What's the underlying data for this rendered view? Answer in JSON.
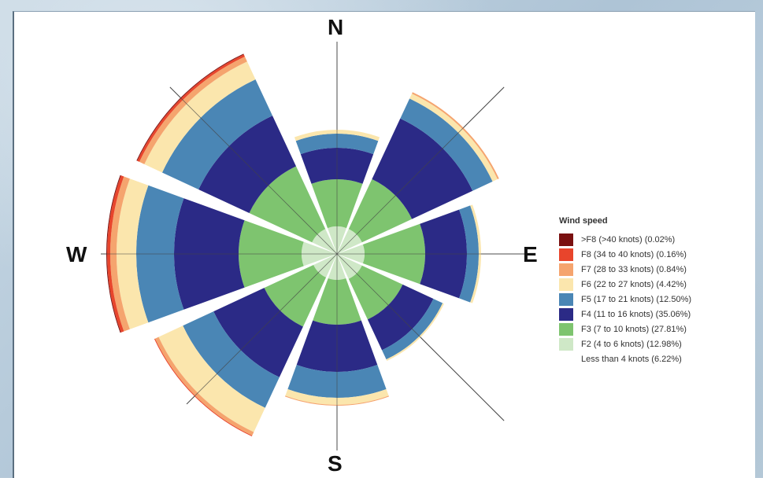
{
  "chart_data": {
    "type": "wind-rose",
    "directions": [
      "N",
      "NE",
      "E",
      "SE",
      "S",
      "SW",
      "W",
      "NW"
    ],
    "compass_labels": {
      "north": "N",
      "east": "E",
      "south": "S",
      "west": "W"
    },
    "legend_title": "Wind speed",
    "legend_placement": "right",
    "bins": [
      {
        "label": ">F8 (>40 knots) (0.02%)",
        "color": "#7a1010"
      },
      {
        "label": "F8 (34 to 40 knots) (0.16%)",
        "color": "#e8452c"
      },
      {
        "label": "F7 (28 to 33 knots) (0.84%)",
        "color": "#f5a46e"
      },
      {
        "label": "F6 (22 to 27 knots) (4.42%)",
        "color": "#fbe6ad"
      },
      {
        "label": "F5 (17 to 21 knots) (12.50%)",
        "color": "#4a86b5"
      },
      {
        "label": "F4 (11 to 16 knots) (35.06%)",
        "color": "#2b2a86"
      },
      {
        "label": "F3 (7 to 10 knots) (27.81%)",
        "color": "#7ec46f"
      },
      {
        "label": "F2 (4 to 6 knots) (12.98%)",
        "color": "#cfe8c7"
      },
      {
        "label": "Less than 4 knots (6.22%)",
        "color": "#ffffff"
      }
    ],
    "sectors": [
      {
        "direction": "N",
        "cum": [
          3.5,
          9.5,
          13.5,
          15.3,
          15.8,
          15.8,
          15.8,
          15.8
        ]
      },
      {
        "direction": "NE",
        "cum": [
          3.5,
          10.5,
          19.0,
          21.8,
          22.5,
          22.7,
          22.7,
          22.7
        ]
      },
      {
        "direction": "E",
        "cum": [
          3.5,
          11.2,
          16.5,
          18.0,
          18.3,
          18.3,
          18.3,
          18.3
        ]
      },
      {
        "direction": "SE",
        "cum": [
          3.5,
          9.2,
          13.5,
          14.8,
          15.0,
          15.0,
          15.0,
          15.0
        ]
      },
      {
        "direction": "S",
        "cum": [
          3.3,
          9.0,
          15.0,
          18.3,
          19.2,
          19.3,
          19.3,
          19.3
        ]
      },
      {
        "direction": "SW",
        "cum": [
          3.3,
          10.2,
          17.3,
          21.6,
          25.0,
          25.5,
          25.6,
          25.6
        ]
      },
      {
        "direction": "W",
        "cum": [
          4.5,
          12.5,
          20.7,
          25.5,
          28.0,
          28.8,
          29.2,
          29.3
        ]
      },
      {
        "direction": "NW",
        "cum": [
          3.5,
          12.3,
          19.4,
          24.5,
          27.0,
          27.7,
          28.0,
          28.1
        ]
      }
    ],
    "radial_max": 30
  }
}
